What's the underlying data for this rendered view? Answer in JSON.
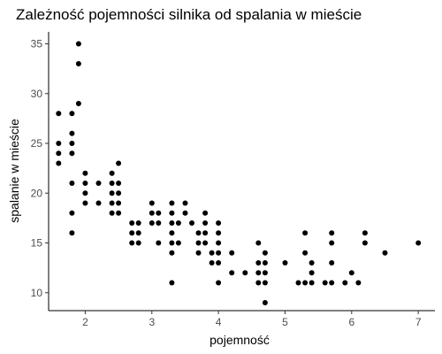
{
  "chart_data": {
    "type": "scatter",
    "title": "Zależność pojemności silnika od spalania w mieście",
    "xlabel": "pojemność",
    "ylabel": "spalanie w mieście",
    "xlim": [
      1.45,
      7.25
    ],
    "ylim": [
      8.2,
      36.2
    ],
    "xticks": [
      2,
      3,
      4,
      5,
      6,
      7
    ],
    "yticks": [
      10,
      15,
      20,
      25,
      30,
      35
    ],
    "grid": false,
    "legend": "none",
    "point_color": "#000000",
    "points": [
      [
        1.6,
        28
      ],
      [
        1.6,
        25
      ],
      [
        1.6,
        24
      ],
      [
        1.6,
        23
      ],
      [
        1.8,
        28
      ],
      [
        1.8,
        26
      ],
      [
        1.8,
        25
      ],
      [
        1.8,
        24
      ],
      [
        1.8,
        21
      ],
      [
        1.8,
        18
      ],
      [
        1.8,
        16
      ],
      [
        1.9,
        35
      ],
      [
        1.9,
        33
      ],
      [
        1.9,
        29
      ],
      [
        2.0,
        22
      ],
      [
        2.0,
        21
      ],
      [
        2.0,
        20
      ],
      [
        2.0,
        19
      ],
      [
        2.2,
        21
      ],
      [
        2.2,
        19
      ],
      [
        2.4,
        22
      ],
      [
        2.4,
        21
      ],
      [
        2.4,
        20
      ],
      [
        2.4,
        19
      ],
      [
        2.4,
        18
      ],
      [
        2.5,
        23
      ],
      [
        2.5,
        21
      ],
      [
        2.5,
        20
      ],
      [
        2.5,
        19
      ],
      [
        2.5,
        18
      ],
      [
        2.7,
        17
      ],
      [
        2.7,
        16
      ],
      [
        2.7,
        15
      ],
      [
        2.8,
        17
      ],
      [
        2.8,
        16
      ],
      [
        2.8,
        15
      ],
      [
        3.0,
        19
      ],
      [
        3.0,
        18
      ],
      [
        3.0,
        17
      ],
      [
        3.1,
        18
      ],
      [
        3.1,
        17
      ],
      [
        3.1,
        15
      ],
      [
        3.3,
        19
      ],
      [
        3.3,
        18
      ],
      [
        3.3,
        17
      ],
      [
        3.3,
        16
      ],
      [
        3.3,
        15
      ],
      [
        3.3,
        14
      ],
      [
        3.3,
        11
      ],
      [
        3.4,
        17
      ],
      [
        3.4,
        15
      ],
      [
        3.5,
        19
      ],
      [
        3.5,
        18
      ],
      [
        3.6,
        17
      ],
      [
        3.7,
        16
      ],
      [
        3.7,
        15
      ],
      [
        3.7,
        14
      ],
      [
        3.8,
        18
      ],
      [
        3.8,
        17
      ],
      [
        3.8,
        16
      ],
      [
        3.8,
        15
      ],
      [
        3.9,
        14
      ],
      [
        3.9,
        13
      ],
      [
        4.0,
        17
      ],
      [
        4.0,
        16
      ],
      [
        4.0,
        15
      ],
      [
        4.0,
        14
      ],
      [
        4.0,
        13
      ],
      [
        4.0,
        11
      ],
      [
        4.2,
        14
      ],
      [
        4.2,
        12
      ],
      [
        4.4,
        12
      ],
      [
        4.6,
        15
      ],
      [
        4.6,
        13
      ],
      [
        4.6,
        12
      ],
      [
        4.6,
        11
      ],
      [
        4.7,
        14
      ],
      [
        4.7,
        13
      ],
      [
        4.7,
        12
      ],
      [
        4.7,
        11
      ],
      [
        4.7,
        9
      ],
      [
        5.0,
        13
      ],
      [
        5.2,
        11
      ],
      [
        5.3,
        16
      ],
      [
        5.3,
        14
      ],
      [
        5.3,
        11
      ],
      [
        5.4,
        13
      ],
      [
        5.4,
        12
      ],
      [
        5.4,
        11
      ],
      [
        5.6,
        11
      ],
      [
        5.7,
        16
      ],
      [
        5.7,
        15
      ],
      [
        5.7,
        13
      ],
      [
        5.7,
        11
      ],
      [
        5.9,
        11
      ],
      [
        6.0,
        12
      ],
      [
        6.1,
        11
      ],
      [
        6.2,
        16
      ],
      [
        6.2,
        15
      ],
      [
        6.5,
        14
      ],
      [
        7.0,
        15
      ]
    ]
  }
}
